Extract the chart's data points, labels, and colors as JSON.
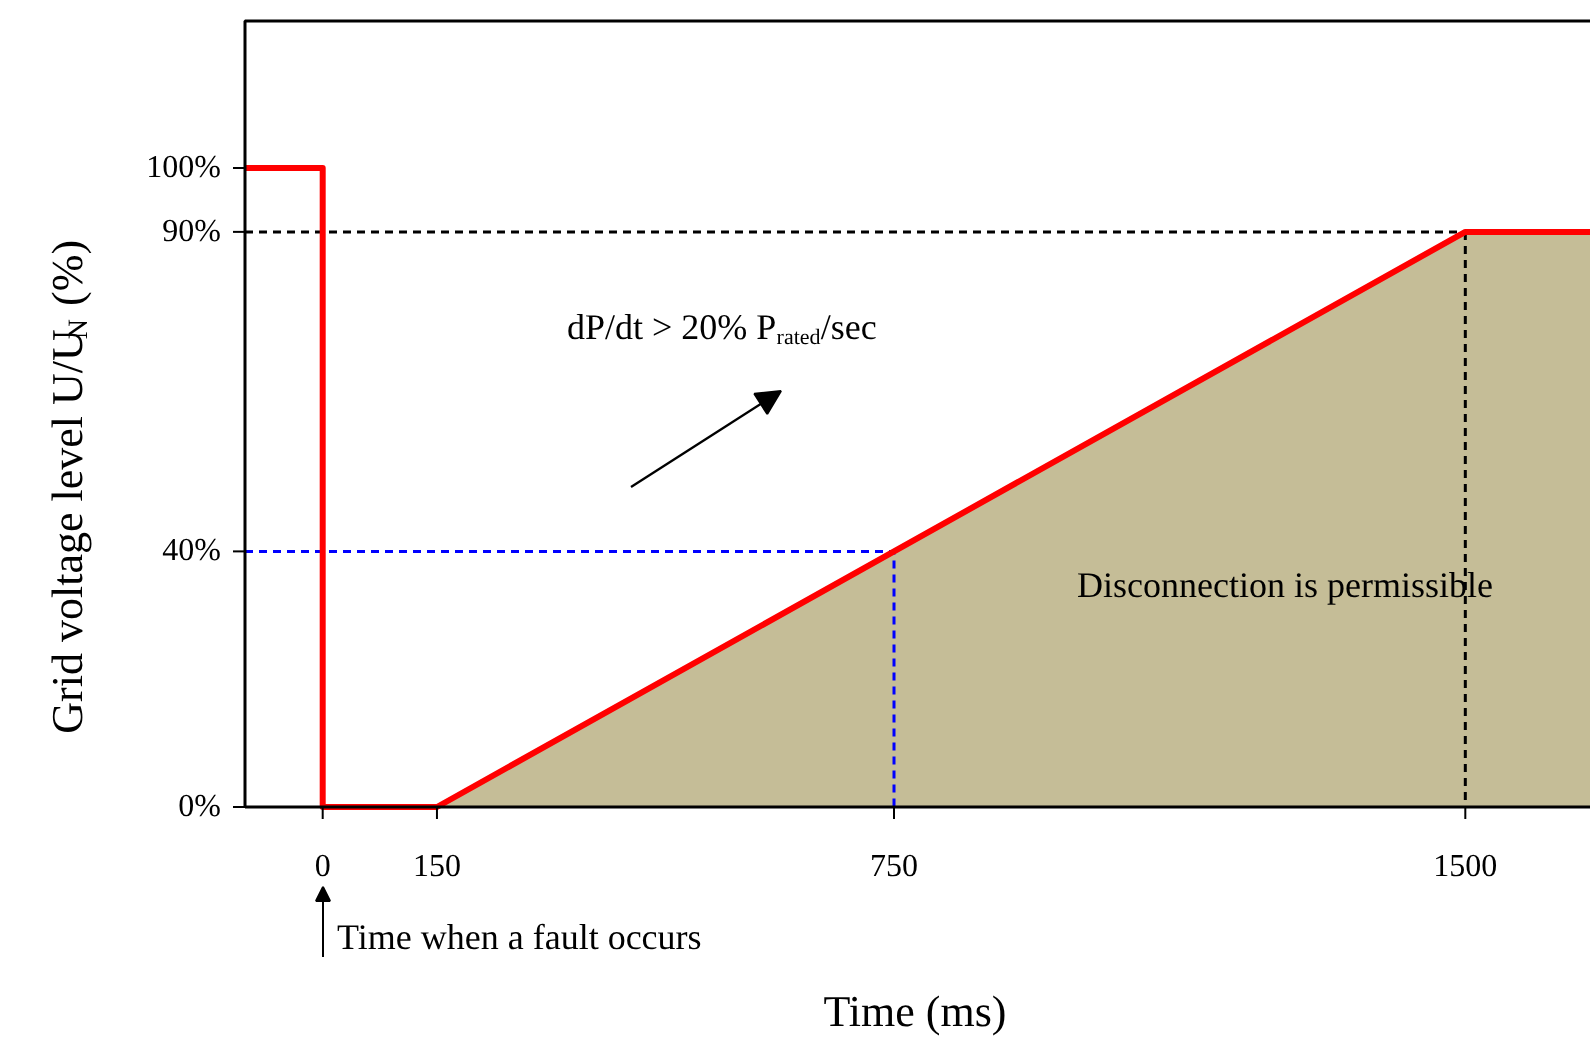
{
  "chart_data": {
    "type": "line",
    "xlabel": "Time (ms)",
    "ylabel": "Grid voltage level U/U$_{N}$ (%)",
    "xlim": [
      -102,
      1665
    ],
    "ylim": [
      0,
      123
    ],
    "xticks": [
      0,
      150,
      750,
      1500
    ],
    "yticks": [
      {
        "value": 0,
        "label": "0%"
      },
      {
        "value": 40,
        "label": "40%"
      },
      {
        "value": 90,
        "label": "90%"
      },
      {
        "value": 100,
        "label": "100%"
      }
    ],
    "grid": false,
    "marker": "none",
    "annotations": [
      "dP/dt > 20% P$_{rated}$/sec",
      "Disconnection is permissible",
      "Time when a fault occurs"
    ],
    "series": [
      {
        "type": "area",
        "color": "#c5bd97",
        "x": [
          150,
          1500,
          1665
        ],
        "values": [
          0,
          90,
          90
        ]
      },
      {
        "type": "line",
        "color": "#000000",
        "line_style": "dashed",
        "x": [
          -102,
          1500
        ],
        "values": [
          90,
          90
        ]
      },
      {
        "type": "line",
        "color": "#000000",
        "line_style": "dashed",
        "x": [
          1500,
          1500
        ],
        "values": [
          90,
          0
        ]
      },
      {
        "type": "line",
        "color": "#0000ff",
        "line_style": "dashed",
        "x": [
          -102,
          750,
          750
        ],
        "values": [
          40,
          40,
          0
        ]
      },
      {
        "color": "#ff0000",
        "x": [
          -102,
          0,
          0,
          150,
          1500,
          1665
        ],
        "values": [
          100,
          100,
          0,
          0,
          90,
          90
        ]
      }
    ]
  }
}
